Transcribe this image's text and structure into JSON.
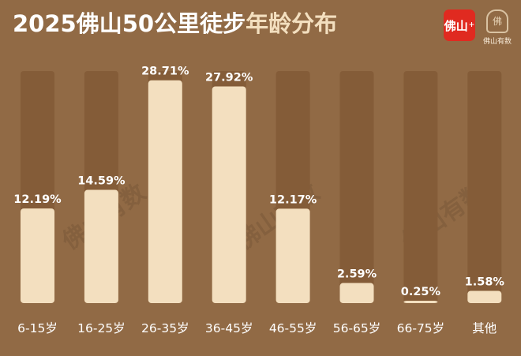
{
  "header": {
    "title_main": "2025佛山50公里徒步",
    "title_accent": "年龄分布",
    "logo_text": "佛山",
    "logo2_caption": "佛山有数",
    "logo2_seal": "佛",
    "watermark": "佛山有数"
  },
  "colors": {
    "background": "#916a45",
    "track": "#845c38",
    "bar": "#f3dfbf",
    "label": "#ffffff",
    "brand_red": "#e02a20"
  },
  "chart_data": {
    "type": "bar",
    "title": "2025佛山50公里徒步年龄分布",
    "categories": [
      "6-15岁",
      "16-25岁",
      "26-35岁",
      "36-45岁",
      "46-55岁",
      "56-65岁",
      "66-75岁",
      "其他"
    ],
    "values": [
      12.19,
      14.59,
      28.71,
      27.92,
      12.17,
      2.59,
      0.25,
      1.58
    ],
    "value_labels": [
      "12.19%",
      "14.59%",
      "28.71%",
      "27.92%",
      "12.17%",
      "2.59%",
      "0.25%",
      "1.58%"
    ],
    "unit": "%",
    "ylim": [
      0,
      29.9
    ],
    "xlabel": "",
    "ylabel": "",
    "grid": false,
    "legend": "none"
  }
}
